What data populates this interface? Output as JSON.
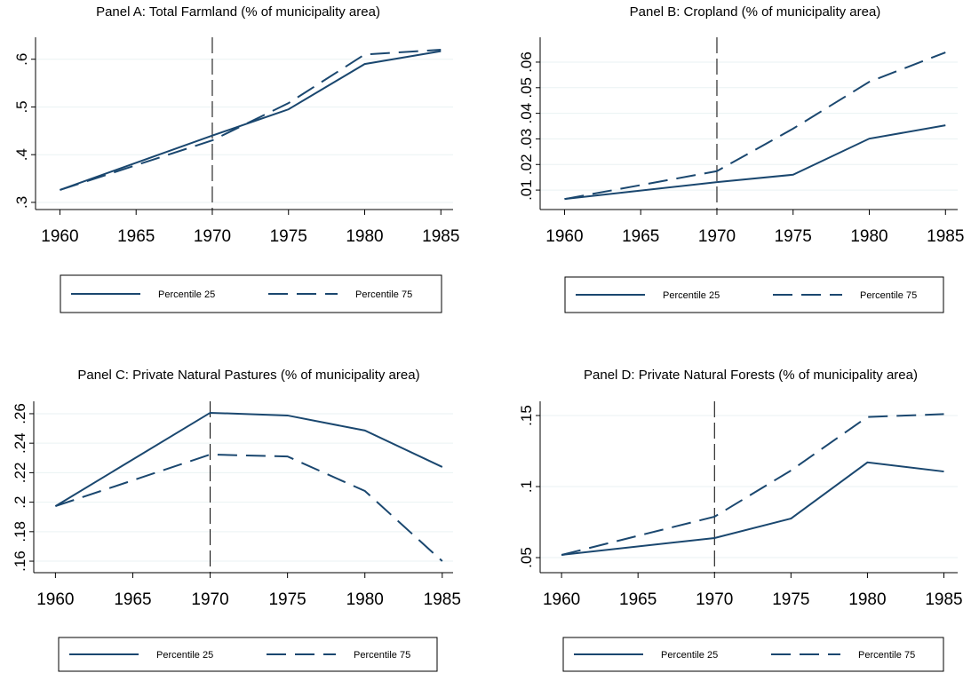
{
  "chart_data": [
    {
      "type": "line",
      "title": "Panel A: Total Farmland (% of municipality area)",
      "x": [
        1960,
        1970,
        1975,
        1980,
        1985
      ],
      "series": [
        {
          "name": "Percentile 25",
          "color": "#1a476f",
          "line_style": "solid",
          "values": [
            0.326,
            0.44,
            0.495,
            0.59,
            0.617
          ]
        },
        {
          "name": "Percentile 75",
          "color": "#1a476f",
          "line_style": "dashed",
          "values": [
            0.326,
            0.43,
            0.508,
            0.61,
            0.62
          ]
        }
      ],
      "xlim": [
        1958.4,
        1985.8
      ],
      "xticks": [
        1960,
        1965,
        1970,
        1975,
        1980,
        1985
      ],
      "ylim": [
        0.285,
        0.646
      ],
      "yticks": [
        {
          "value": 0.3,
          "label": ".3"
        },
        {
          "value": 0.4,
          "label": ".4"
        },
        {
          "value": 0.5,
          "label": ".5"
        },
        {
          "value": 0.6,
          "label": ".6"
        }
      ],
      "xline": 1970,
      "grid": true,
      "legend": "bottom"
    },
    {
      "type": "line",
      "title": "Panel B: Cropland (% of municipality area)",
      "x": [
        1960,
        1970,
        1975,
        1980,
        1985
      ],
      "series": [
        {
          "name": "Percentile 25",
          "color": "#1a476f",
          "line_style": "solid",
          "values": [
            0.0065,
            0.0131,
            0.016,
            0.0301,
            0.0353
          ]
        },
        {
          "name": "Percentile 75",
          "color": "#1a476f",
          "line_style": "dashed",
          "values": [
            0.0065,
            0.0174,
            0.034,
            0.0523,
            0.0638
          ]
        }
      ],
      "xlim": [
        1958.4,
        1985.8
      ],
      "xticks": [
        1960,
        1965,
        1970,
        1975,
        1980,
        1985
      ],
      "ylim": [
        0.0024,
        0.0697
      ],
      "yticks": [
        {
          "value": 0.01,
          "label": ".01"
        },
        {
          "value": 0.02,
          "label": ".02"
        },
        {
          "value": 0.03,
          "label": ".03"
        },
        {
          "value": 0.04,
          "label": ".04"
        },
        {
          "value": 0.05,
          "label": ".05"
        },
        {
          "value": 0.06,
          "label": ".06"
        }
      ],
      "xline": 1970,
      "grid": true,
      "legend": "bottom"
    },
    {
      "type": "line",
      "title": "Panel C: Private Natural Pastures (% of municipality area)",
      "x": [
        1960,
        1970,
        1975,
        1980,
        1985
      ],
      "series": [
        {
          "name": "Percentile 25",
          "color": "#1a476f",
          "line_style": "solid",
          "values": [
            0.1973,
            0.2606,
            0.2588,
            0.2486,
            0.2239
          ]
        },
        {
          "name": "Percentile 75",
          "color": "#1a476f",
          "line_style": "dashed",
          "values": [
            0.1973,
            0.2323,
            0.231,
            0.2076,
            0.16
          ]
        }
      ],
      "xlim": [
        1958.6,
        1985.7
      ],
      "xticks": [
        1960,
        1965,
        1970,
        1975,
        1980,
        1985
      ],
      "ylim": [
        0.1522,
        0.2684
      ],
      "yticks": [
        {
          "value": 0.16,
          "label": ".16"
        },
        {
          "value": 0.18,
          "label": ".18"
        },
        {
          "value": 0.2,
          "label": ".2"
        },
        {
          "value": 0.22,
          "label": ".22"
        },
        {
          "value": 0.24,
          "label": ".24"
        },
        {
          "value": 0.26,
          "label": ".26"
        }
      ],
      "xline": 1970,
      "grid": true,
      "legend": "bottom"
    },
    {
      "type": "line",
      "title": "Panel D: Private Natural Forests (% of municipality area)",
      "x": [
        1960,
        1970,
        1975,
        1980,
        1985
      ],
      "series": [
        {
          "name": "Percentile 25",
          "color": "#1a476f",
          "line_style": "solid",
          "values": [
            0.0519,
            0.0638,
            0.0775,
            0.117,
            0.1106
          ]
        },
        {
          "name": "Percentile 75",
          "color": "#1a476f",
          "line_style": "dashed",
          "values": [
            0.0519,
            0.0788,
            0.1113,
            0.149,
            0.151
          ]
        }
      ],
      "xlim": [
        1958.6,
        1985.9
      ],
      "xticks": [
        1960,
        1965,
        1970,
        1975,
        1980,
        1985
      ],
      "ylim": [
        0.0394,
        0.16
      ],
      "yticks": [
        {
          "value": 0.05,
          "label": ".05"
        },
        {
          "value": 0.1,
          "label": ".1"
        },
        {
          "value": 0.15,
          "label": ".15"
        }
      ],
      "xline": 1970,
      "grid": true,
      "legend": "bottom"
    }
  ]
}
